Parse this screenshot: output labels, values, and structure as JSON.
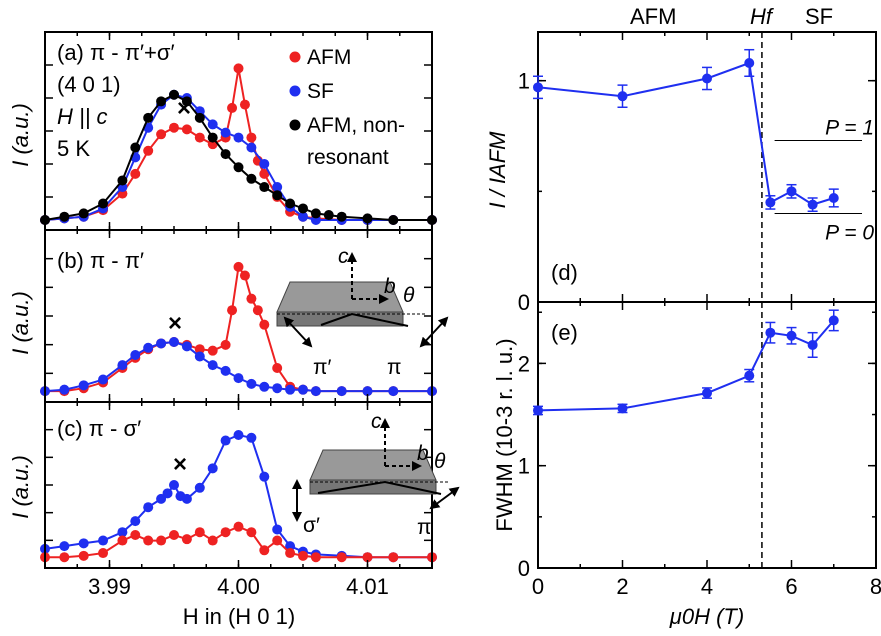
{
  "chart_data": [
    {
      "id": "a",
      "type": "line",
      "panel_label": "(a) π - π′+σ′",
      "annotations": [
        "(4 0 1)",
        "H || c",
        "5 K"
      ],
      "ylabel": "I (a.u.)",
      "xlim": [
        3.985,
        4.015
      ],
      "ylim": [
        0,
        1.08
      ],
      "legend_position": "top-right",
      "marker_label": "×",
      "marker_at": [
        3.9953,
        0.86
      ],
      "series": [
        {
          "name": "AFM",
          "color": "#ee2222",
          "x": [
            3.985,
            3.9865,
            3.988,
            3.9895,
            3.991,
            3.992,
            3.993,
            3.994,
            3.995,
            3.996,
            3.997,
            3.998,
            3.999,
            3.9995,
            4.0,
            4.0005,
            4.001,
            4.0015,
            4.002,
            4.003,
            4.004,
            4.005,
            4.006,
            4.008,
            4.01,
            4.012,
            4.015
          ],
          "y": [
            0.0,
            0.01,
            0.02,
            0.06,
            0.16,
            0.28,
            0.42,
            0.52,
            0.56,
            0.55,
            0.5,
            0.46,
            0.5,
            0.68,
            0.92,
            0.7,
            0.5,
            0.36,
            0.28,
            0.14,
            0.05,
            0.02,
            0.01,
            0.0,
            0.0,
            0.0,
            0.0
          ]
        },
        {
          "name": "SF",
          "color": "#1f2ff0",
          "x": [
            3.985,
            3.9865,
            3.988,
            3.9895,
            3.991,
            3.992,
            3.993,
            3.994,
            3.995,
            3.996,
            3.997,
            3.998,
            3.999,
            4.0,
            4.001,
            4.002,
            4.003,
            4.004,
            4.005,
            4.006,
            4.008,
            4.01,
            4.012,
            4.015
          ],
          "y": [
            0.0,
            0.01,
            0.02,
            0.07,
            0.2,
            0.38,
            0.56,
            0.7,
            0.76,
            0.74,
            0.66,
            0.58,
            0.53,
            0.5,
            0.44,
            0.34,
            0.2,
            0.08,
            0.02,
            0.0,
            0.0,
            0.0,
            0.0,
            0.0
          ]
        },
        {
          "name": "AFM, non-resonant",
          "color": "#000000",
          "x": [
            3.985,
            3.9865,
            3.988,
            3.9895,
            3.991,
            3.992,
            3.993,
            3.994,
            3.995,
            3.996,
            3.997,
            3.998,
            3.999,
            4.0,
            4.001,
            4.002,
            4.003,
            4.004,
            4.005,
            4.006,
            4.007,
            4.008,
            4.01,
            4.012,
            4.015
          ],
          "y": [
            0.0,
            0.02,
            0.04,
            0.1,
            0.24,
            0.44,
            0.62,
            0.72,
            0.76,
            0.72,
            0.62,
            0.5,
            0.4,
            0.32,
            0.25,
            0.2,
            0.15,
            0.1,
            0.07,
            0.04,
            0.03,
            0.02,
            0.01,
            0.0,
            0.0
          ]
        }
      ],
      "legend": [
        {
          "label": "AFM",
          "color": "#ee2222"
        },
        {
          "label": "SF",
          "color": "#1f2ff0"
        },
        {
          "label": "AFM, non-",
          "color": "#000000"
        },
        {
          "label": "resonant",
          "color": ""
        }
      ]
    },
    {
      "id": "b",
      "type": "line",
      "panel_label": "(b) π - π′",
      "ylabel": "I (a.u.)",
      "xlim": [
        3.985,
        4.015
      ],
      "ylim": [
        0,
        1.08
      ],
      "marker_label": "×",
      "marker_at": [
        3.995,
        0.45
      ],
      "inset_labels": {
        "c": "c",
        "b": "b",
        "theta": "θ",
        "left": "π′",
        "right": "π"
      },
      "series": [
        {
          "name": "",
          "color": "#ee2222",
          "x": [
            3.985,
            3.9865,
            3.988,
            3.9895,
            3.991,
            3.992,
            3.993,
            3.994,
            3.995,
            3.996,
            3.997,
            3.998,
            3.999,
            3.9995,
            4.0,
            4.0005,
            4.001,
            4.0015,
            4.002,
            4.003,
            4.004,
            4.005,
            4.006,
            4.008,
            4.01,
            4.012,
            4.015
          ],
          "y": [
            0.02,
            0.02,
            0.04,
            0.08,
            0.18,
            0.25,
            0.31,
            0.35,
            0.36,
            0.34,
            0.31,
            0.3,
            0.34,
            0.58,
            0.88,
            0.82,
            0.66,
            0.58,
            0.48,
            0.18,
            0.05,
            0.03,
            0.02,
            0.02,
            0.02,
            0.02,
            0.02
          ]
        },
        {
          "name": "",
          "color": "#1f2ff0",
          "x": [
            3.985,
            3.9865,
            3.988,
            3.9895,
            3.991,
            3.992,
            3.993,
            3.994,
            3.995,
            3.996,
            3.997,
            3.998,
            3.999,
            4.0,
            4.001,
            4.002,
            4.003,
            4.004,
            4.005,
            4.006,
            4.008,
            4.01,
            4.012,
            4.015
          ],
          "y": [
            0.02,
            0.03,
            0.06,
            0.1,
            0.2,
            0.27,
            0.32,
            0.35,
            0.36,
            0.33,
            0.26,
            0.2,
            0.16,
            0.11,
            0.07,
            0.05,
            0.04,
            0.03,
            0.03,
            0.02,
            0.02,
            0.02,
            0.02,
            0.02
          ]
        }
      ]
    },
    {
      "id": "c",
      "type": "line",
      "panel_label": "(c) π - σ′",
      "ylabel": "I (a.u.)",
      "xlabel": "H in (H 0 1)",
      "xlim": [
        3.985,
        4.015
      ],
      "xticks": [
        3.99,
        4.0,
        4.01
      ],
      "xtick_labels": [
        "3.99",
        "4.00",
        "4.01"
      ],
      "ylim": [
        0,
        1.08
      ],
      "marker_label": "×",
      "marker_at": [
        3.9953,
        0.6
      ],
      "inset_labels": {
        "c": "c",
        "b": "b",
        "theta": "θ",
        "left": "σ′",
        "right": "π"
      },
      "series": [
        {
          "name": "",
          "color": "#1f2ff0",
          "x": [
            3.985,
            3.9865,
            3.988,
            3.9895,
            3.991,
            3.992,
            3.993,
            3.994,
            3.9945,
            3.995,
            3.9955,
            3.996,
            3.997,
            3.998,
            3.999,
            4.0,
            4.001,
            4.002,
            4.003,
            4.004,
            4.005,
            4.006,
            4.008,
            4.01,
            4.012,
            4.015
          ],
          "y": [
            0.08,
            0.1,
            0.12,
            0.14,
            0.2,
            0.28,
            0.38,
            0.44,
            0.48,
            0.54,
            0.46,
            0.44,
            0.52,
            0.66,
            0.86,
            0.9,
            0.88,
            0.6,
            0.22,
            0.1,
            0.06,
            0.04,
            0.03,
            0.02,
            0.02,
            0.02
          ]
        },
        {
          "name": "",
          "color": "#ee2222",
          "x": [
            3.985,
            3.9865,
            3.988,
            3.9895,
            3.991,
            3.992,
            3.993,
            3.994,
            3.995,
            3.996,
            3.997,
            3.998,
            3.999,
            4.0,
            4.001,
            4.002,
            4.003,
            4.004,
            4.005,
            4.006,
            4.008,
            4.01,
            4.012,
            4.015
          ],
          "y": [
            0.02,
            0.02,
            0.03,
            0.05,
            0.14,
            0.18,
            0.14,
            0.14,
            0.18,
            0.15,
            0.2,
            0.14,
            0.2,
            0.24,
            0.2,
            0.07,
            0.14,
            0.05,
            0.03,
            0.02,
            0.02,
            0.02,
            0.02,
            0.02
          ]
        }
      ]
    },
    {
      "id": "d",
      "type": "line",
      "panel_label": "(d)",
      "ylabel": "I / IAFM",
      "xlim": [
        0,
        8
      ],
      "ylim": [
        0,
        1.22
      ],
      "yticks": [
        0,
        1
      ],
      "ytick_labels": [
        "0",
        "1"
      ],
      "top_labels": {
        "afm": "AFM",
        "hf": "Hf",
        "sf": "SF"
      },
      "reference_lines": [
        {
          "label": "P = 1",
          "y": 0.73
        },
        {
          "label": "P = 0",
          "y": 0.4
        }
      ],
      "vline_x": 5.3,
      "series": [
        {
          "name": "",
          "color": "#1f2ff0",
          "x": [
            0,
            2,
            4,
            5,
            5.5,
            6,
            6.5,
            7
          ],
          "y": [
            0.97,
            0.93,
            1.01,
            1.08,
            0.45,
            0.5,
            0.44,
            0.47
          ],
          "err": [
            0.05,
            0.05,
            0.05,
            0.06,
            0.03,
            0.03,
            0.03,
            0.04
          ]
        }
      ]
    },
    {
      "id": "e",
      "type": "line",
      "panel_label": "(e)",
      "ylabel": "FWHM (10-3 r. l. u.)",
      "xlabel": "μ0H (T)",
      "xlim": [
        0,
        8
      ],
      "xticks": [
        0,
        2,
        4,
        6,
        8
      ],
      "xtick_labels": [
        "0",
        "2",
        "4",
        "6",
        "8"
      ],
      "ylim": [
        0,
        2.6
      ],
      "yticks": [
        0,
        1,
        2
      ],
      "ytick_labels": [
        "0",
        "1",
        "2"
      ],
      "vline_x": 5.3,
      "series": [
        {
          "name": "",
          "color": "#1f2ff0",
          "x": [
            0,
            2,
            4,
            5,
            5.5,
            6,
            6.5,
            7
          ],
          "y": [
            1.54,
            1.56,
            1.71,
            1.88,
            2.3,
            2.27,
            2.18,
            2.42
          ],
          "err": [
            0.04,
            0.04,
            0.05,
            0.06,
            0.1,
            0.08,
            0.12,
            0.1
          ]
        }
      ]
    }
  ]
}
